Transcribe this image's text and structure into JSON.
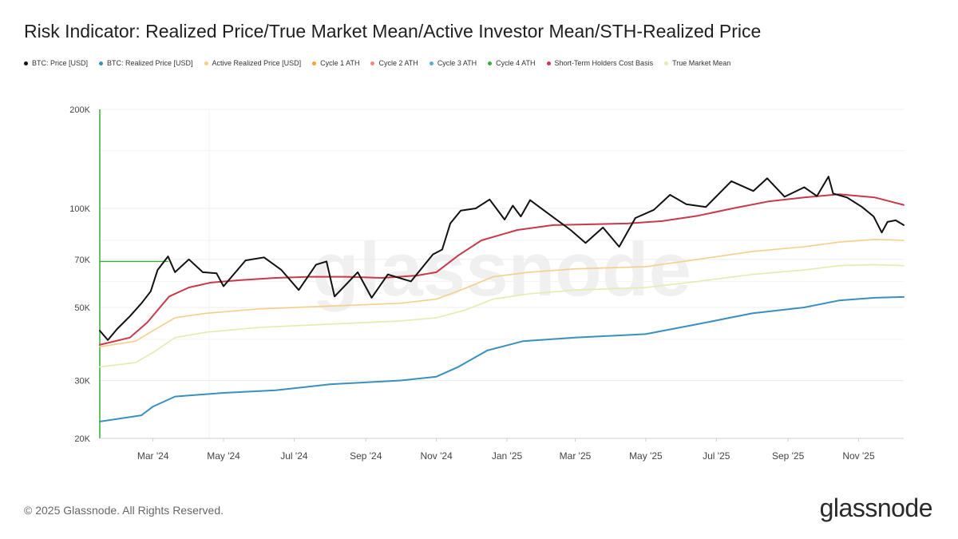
{
  "header": {
    "title": "Risk Indicator: Realized Price/True Market Mean/Active Investor Mean/STH-Realized Price"
  },
  "legend": [
    {
      "label": "BTC: Price [USD]",
      "color": "#111111"
    },
    {
      "label": "BTC: Realized Price [USD]",
      "color": "#3a8fbf"
    },
    {
      "label": "Active Realized Price [USD]",
      "color": "#f5cf8a"
    },
    {
      "label": "Cycle 1 ATH",
      "color": "#f0a530"
    },
    {
      "label": "Cycle 2 ATH",
      "color": "#f08a80"
    },
    {
      "label": "Cycle 3 ATH",
      "color": "#5aa8e0"
    },
    {
      "label": "Cycle 4 ATH",
      "color": "#3aaa3a"
    },
    {
      "label": "Short-Term Holders Cost Basis",
      "color": "#c83a4a"
    },
    {
      "label": "True Market Mean",
      "color": "#e3ecb0"
    }
  ],
  "footer": {
    "copyright": "© 2025 Glassnode. All Rights Reserved.",
    "brand": "glassnode"
  },
  "watermark": "glassnode",
  "chart_data": {
    "type": "line",
    "y_scale": "log",
    "ylim": [
      20000,
      200000
    ],
    "y_ticks": [
      {
        "value": 20000,
        "label": "20K"
      },
      {
        "value": 30000,
        "label": "30K"
      },
      {
        "value": 50000,
        "label": "50K"
      },
      {
        "value": 70000,
        "label": "70K"
      },
      {
        "value": 100000,
        "label": "100K"
      },
      {
        "value": 200000,
        "label": "200K"
      }
    ],
    "x_range": [
      "2024-01-15",
      "2025-12-10"
    ],
    "x_ticks": [
      {
        "date": "2024-03-01",
        "label": "Mar '24"
      },
      {
        "date": "2024-05-01",
        "label": "May '24"
      },
      {
        "date": "2024-07-01",
        "label": "Jul '24"
      },
      {
        "date": "2024-09-01",
        "label": "Sep '24"
      },
      {
        "date": "2024-11-01",
        "label": "Nov '24"
      },
      {
        "date": "2025-01-01",
        "label": "Jan '25"
      },
      {
        "date": "2025-03-01",
        "label": "Mar '25"
      },
      {
        "date": "2025-05-01",
        "label": "May '25"
      },
      {
        "date": "2025-07-01",
        "label": "Jul '25"
      },
      {
        "date": "2025-09-01",
        "label": "Sep '25"
      },
      {
        "date": "2025-11-01",
        "label": "Nov '25"
      }
    ],
    "grid": true,
    "series": [
      {
        "name": "Cycle 4 ATH",
        "color": "#3aaa3a",
        "width": 1.4,
        "points": [
          [
            "2024-01-15",
            69000
          ],
          [
            "2024-03-14",
            69000
          ]
        ]
      },
      {
        "name": "True Market Mean",
        "color": "#e3ecb0",
        "width": 1.6,
        "points": [
          [
            "2024-01-15",
            33000
          ],
          [
            "2024-02-15",
            34000
          ],
          [
            "2024-03-01",
            36500
          ],
          [
            "2024-03-20",
            40500
          ],
          [
            "2024-04-15",
            42000
          ],
          [
            "2024-06-01",
            43500
          ],
          [
            "2024-08-01",
            44500
          ],
          [
            "2024-10-01",
            45500
          ],
          [
            "2024-11-01",
            46500
          ],
          [
            "2024-11-25",
            49000
          ],
          [
            "2024-12-20",
            53000
          ],
          [
            "2025-01-20",
            55000
          ],
          [
            "2025-03-01",
            56500
          ],
          [
            "2025-05-01",
            57500
          ],
          [
            "2025-06-15",
            60000
          ],
          [
            "2025-08-01",
            63000
          ],
          [
            "2025-09-15",
            65000
          ],
          [
            "2025-10-15",
            67000
          ],
          [
            "2025-11-15",
            67500
          ],
          [
            "2025-12-10",
            67000
          ]
        ]
      },
      {
        "name": "Active Realized Price [USD]",
        "color": "#f5cf8a",
        "width": 1.6,
        "points": [
          [
            "2024-01-15",
            38000
          ],
          [
            "2024-02-15",
            39500
          ],
          [
            "2024-03-01",
            42500
          ],
          [
            "2024-03-20",
            46500
          ],
          [
            "2024-04-15",
            48000
          ],
          [
            "2024-06-01",
            49500
          ],
          [
            "2024-08-01",
            50500
          ],
          [
            "2024-10-01",
            51500
          ],
          [
            "2024-11-01",
            53000
          ],
          [
            "2024-11-25",
            57000
          ],
          [
            "2024-12-20",
            62000
          ],
          [
            "2025-01-20",
            64000
          ],
          [
            "2025-03-01",
            65500
          ],
          [
            "2025-05-01",
            66500
          ],
          [
            "2025-06-15",
            70000
          ],
          [
            "2025-08-01",
            74000
          ],
          [
            "2025-09-15",
            76500
          ],
          [
            "2025-10-15",
            79000
          ],
          [
            "2025-11-15",
            80500
          ],
          [
            "2025-12-10",
            80000
          ]
        ]
      },
      {
        "name": "BTC: Realized Price [USD]",
        "color": "#3a8fbf",
        "width": 2,
        "points": [
          [
            "2024-01-15",
            22500
          ],
          [
            "2024-02-20",
            23500
          ],
          [
            "2024-03-01",
            25000
          ],
          [
            "2024-03-20",
            26800
          ],
          [
            "2024-05-01",
            27500
          ],
          [
            "2024-06-15",
            28000
          ],
          [
            "2024-08-01",
            29200
          ],
          [
            "2024-10-01",
            30000
          ],
          [
            "2024-11-01",
            30800
          ],
          [
            "2024-11-20",
            33000
          ],
          [
            "2024-12-15",
            37000
          ],
          [
            "2025-01-15",
            39500
          ],
          [
            "2025-03-01",
            40500
          ],
          [
            "2025-05-01",
            41500
          ],
          [
            "2025-06-15",
            44500
          ],
          [
            "2025-08-01",
            48000
          ],
          [
            "2025-09-15",
            50000
          ],
          [
            "2025-10-15",
            52500
          ],
          [
            "2025-11-15",
            53500
          ],
          [
            "2025-12-10",
            53800
          ]
        ]
      },
      {
        "name": "Short-Term Holders Cost Basis",
        "color": "#c83a4a",
        "width": 2,
        "points": [
          [
            "2024-01-15",
            38500
          ],
          [
            "2024-02-10",
            40500
          ],
          [
            "2024-02-25",
            45000
          ],
          [
            "2024-03-15",
            54000
          ],
          [
            "2024-04-01",
            57500
          ],
          [
            "2024-04-20",
            59500
          ],
          [
            "2024-05-15",
            60500
          ],
          [
            "2024-06-15",
            61500
          ],
          [
            "2024-07-15",
            62000
          ],
          [
            "2024-08-15",
            62000
          ],
          [
            "2024-09-15",
            61500
          ],
          [
            "2024-10-15",
            62500
          ],
          [
            "2024-11-01",
            64000
          ],
          [
            "2024-11-20",
            72000
          ],
          [
            "2024-12-10",
            80000
          ],
          [
            "2025-01-10",
            86000
          ],
          [
            "2025-02-10",
            89000
          ],
          [
            "2025-03-15",
            89500
          ],
          [
            "2025-04-15",
            90000
          ],
          [
            "2025-05-15",
            91500
          ],
          [
            "2025-06-15",
            95000
          ],
          [
            "2025-07-15",
            100000
          ],
          [
            "2025-08-15",
            105000
          ],
          [
            "2025-09-15",
            108000
          ],
          [
            "2025-10-15",
            110500
          ],
          [
            "2025-11-15",
            108000
          ],
          [
            "2025-12-10",
            102500
          ]
        ]
      },
      {
        "name": "BTC: Price [USD]",
        "color": "#111111",
        "width": 2,
        "points": [
          [
            "2024-01-15",
            42500
          ],
          [
            "2024-01-22",
            39800
          ],
          [
            "2024-01-30",
            43000
          ],
          [
            "2024-02-10",
            47000
          ],
          [
            "2024-02-20",
            51500
          ],
          [
            "2024-02-28",
            56000
          ],
          [
            "2024-03-05",
            65000
          ],
          [
            "2024-03-14",
            71500
          ],
          [
            "2024-03-20",
            64000
          ],
          [
            "2024-04-01",
            70000
          ],
          [
            "2024-04-13",
            64000
          ],
          [
            "2024-04-25",
            63500
          ],
          [
            "2024-05-01",
            58000
          ],
          [
            "2024-05-20",
            69500
          ],
          [
            "2024-06-05",
            71000
          ],
          [
            "2024-06-20",
            65000
          ],
          [
            "2024-07-05",
            56500
          ],
          [
            "2024-07-20",
            67500
          ],
          [
            "2024-07-29",
            69000
          ],
          [
            "2024-08-05",
            54000
          ],
          [
            "2024-08-25",
            64000
          ],
          [
            "2024-09-06",
            53500
          ],
          [
            "2024-09-20",
            63000
          ],
          [
            "2024-10-10",
            60000
          ],
          [
            "2024-10-29",
            72500
          ],
          [
            "2024-11-06",
            75000
          ],
          [
            "2024-11-13",
            90000
          ],
          [
            "2024-11-22",
            98500
          ],
          [
            "2024-12-05",
            100000
          ],
          [
            "2024-12-17",
            106500
          ],
          [
            "2024-12-30",
            92500
          ],
          [
            "2025-01-06",
            102000
          ],
          [
            "2025-01-13",
            94500
          ],
          [
            "2025-01-21",
            106000
          ],
          [
            "2025-02-03",
            98000
          ],
          [
            "2025-02-25",
            86000
          ],
          [
            "2025-03-10",
            78500
          ],
          [
            "2025-03-25",
            87500
          ],
          [
            "2025-04-08",
            76500
          ],
          [
            "2025-04-22",
            93500
          ],
          [
            "2025-05-08",
            99000
          ],
          [
            "2025-05-22",
            110000
          ],
          [
            "2025-06-05",
            103000
          ],
          [
            "2025-06-22",
            101000
          ],
          [
            "2025-07-14",
            121000
          ],
          [
            "2025-08-02",
            113000
          ],
          [
            "2025-08-14",
            123500
          ],
          [
            "2025-08-29",
            108500
          ],
          [
            "2025-09-15",
            116000
          ],
          [
            "2025-09-26",
            109000
          ],
          [
            "2025-10-06",
            125000
          ],
          [
            "2025-10-10",
            111000
          ],
          [
            "2025-10-22",
            108000
          ],
          [
            "2025-11-04",
            101000
          ],
          [
            "2025-11-14",
            94500
          ],
          [
            "2025-11-21",
            84500
          ],
          [
            "2025-11-26",
            91000
          ],
          [
            "2025-12-03",
            92000
          ],
          [
            "2025-12-10",
            89000
          ]
        ]
      }
    ]
  }
}
